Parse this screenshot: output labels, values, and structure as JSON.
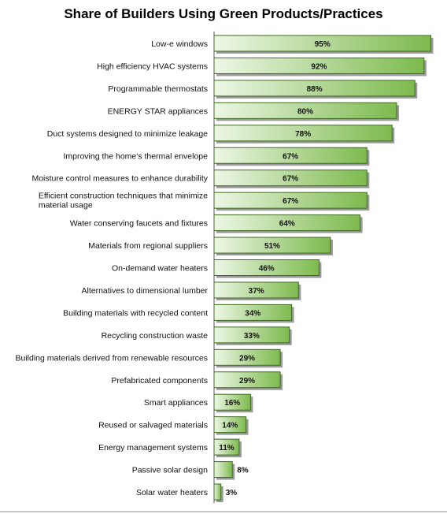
{
  "chart_data": {
    "type": "bar",
    "orientation": "horizontal",
    "title": "Share of Builders Using Green Products/Practices",
    "xlabel": "",
    "ylabel": "",
    "xlim": [
      0,
      100
    ],
    "grid": false,
    "bar_color": "#7dba4e",
    "bar_gradient_light": "#eef7e6",
    "bar_edge_color": "#3f6b22",
    "value_suffix": "%",
    "categories": [
      "Low-e windows",
      "High efficiency HVAC systems",
      "Programmable thermostats",
      "ENERGY STAR appliances",
      "Duct systems designed to minimize leakage",
      "Improving the home's thermal envelope",
      "Moisture control measures to enhance durability",
      "Efficient construction techniques that minimize material usage",
      "Water conserving faucets and fixtures",
      "Materials from regional suppliers",
      "On-demand water heaters",
      "Alternatives to dimensional lumber",
      "Building materials with recycled content",
      "Recycling construction waste",
      "Building materials derived from renewable resources",
      "Prefabricated components",
      "Smart appliances",
      "Reused or salvaged materials",
      "Energy management systems",
      "Passive solar design",
      "Solar water heaters"
    ],
    "values": [
      95,
      92,
      88,
      80,
      78,
      67,
      67,
      67,
      64,
      51,
      46,
      37,
      34,
      33,
      29,
      29,
      16,
      14,
      11,
      8,
      3
    ]
  }
}
